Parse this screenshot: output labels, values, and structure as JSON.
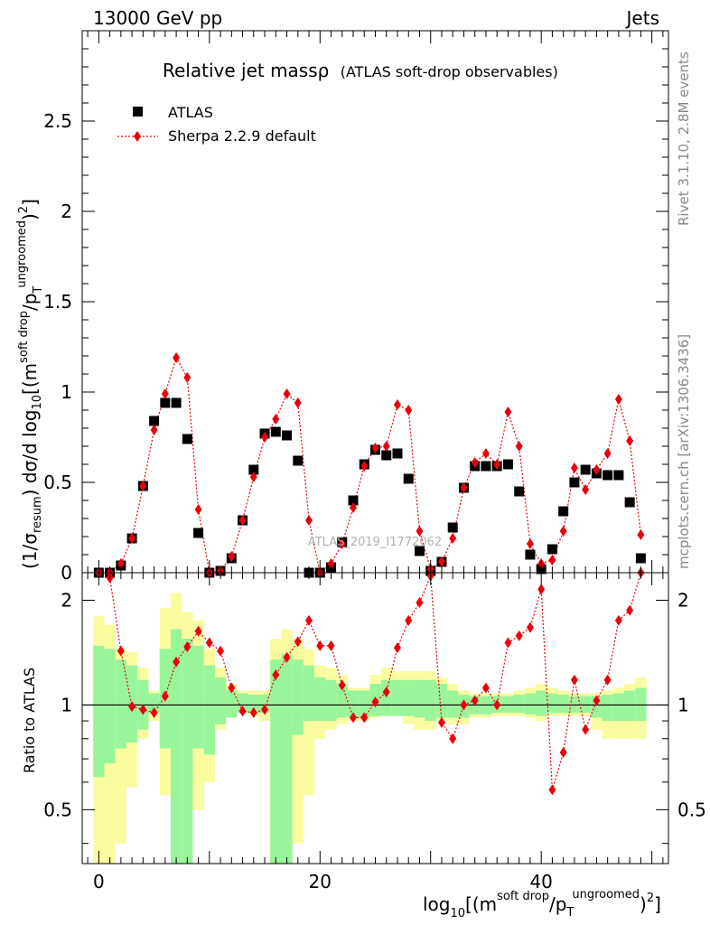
{
  "header": {
    "left": "13000 GeV pp",
    "right": "Jets"
  },
  "title": "Relative jet massρ",
  "title_suffix": "(ATLAS soft-drop observables)",
  "side_labels": {
    "rivet": "Rivet 3.1.10,  2.8M events",
    "mcplots": "mcplots.cern.ch [arXiv:1306.3436]"
  },
  "watermark": "ATLAS_2019_I1772062",
  "legend": {
    "data_label": "ATLAS",
    "mc_label": "Sherpa 2.2.9 default"
  },
  "axes": {
    "ylabel_main": "(1/σresum) dσ/d log10[(m soft drop/pT ungroomed)2]",
    "ylabel_ratio": "Ratio to ATLAS",
    "xlabel": "log10[(m soft drop/pT ungroomed)2]"
  },
  "colors": {
    "data": "#000000",
    "mc": "#e8000b",
    "band_inner": "#99f59a",
    "band_outer": "#fbfba0"
  },
  "chart_data": {
    "type": "scatter",
    "x_range": [
      -1.5,
      51.5
    ],
    "ylim_main": [
      0,
      3.0
    ],
    "ylim_ratio": [
      0.35,
      2.4
    ],
    "x_ticks": [
      0,
      20,
      40
    ],
    "y_ticks_main": [
      0,
      0.5,
      1,
      1.5,
      2,
      2.5
    ],
    "y_ticks_ratio": [
      0.5,
      1,
      2
    ],
    "y_tick_labels_main": [
      "0",
      "0.5",
      "1",
      "1.5",
      "2",
      "2.5"
    ],
    "x_tick_labels": [
      "0",
      "20",
      "40"
    ],
    "y_tick_labels_ratio": [
      "0.5",
      "1",
      "2"
    ],
    "x": [
      0,
      1,
      2,
      3,
      4,
      5,
      6,
      7,
      8,
      9,
      10,
      11,
      12,
      13,
      14,
      15,
      16,
      17,
      18,
      19,
      20,
      21,
      22,
      23,
      24,
      25,
      26,
      27,
      28,
      29,
      30,
      31,
      32,
      33,
      34,
      35,
      36,
      37,
      38,
      39,
      40,
      41,
      42,
      43,
      44,
      45,
      46,
      47,
      48,
      49
    ],
    "series": [
      {
        "name": "ATLAS",
        "marker": "square",
        "values": [
          0.0,
          0.0,
          0.04,
          0.19,
          0.48,
          0.84,
          0.94,
          0.94,
          0.74,
          0.22,
          0.0,
          0.01,
          0.08,
          0.29,
          0.57,
          0.77,
          0.78,
          0.76,
          0.62,
          0.0,
          0.0,
          0.03,
          0.17,
          0.4,
          0.6,
          0.68,
          0.65,
          0.66,
          0.52,
          0.12,
          0.01,
          0.06,
          0.25,
          0.47,
          0.59,
          0.59,
          0.59,
          0.6,
          0.45,
          0.1,
          0.02,
          0.13,
          0.34,
          0.5,
          0.57,
          0.55,
          0.54,
          0.54,
          0.39,
          0.08
        ]
      },
      {
        "name": "Sherpa 2.2.9 default",
        "marker": "diamond",
        "values": [
          0.0,
          0.0,
          0.05,
          0.19,
          0.48,
          0.79,
          0.99,
          1.19,
          1.08,
          0.35,
          0.0,
          0.01,
          0.09,
          0.29,
          0.53,
          0.75,
          0.85,
          0.99,
          0.94,
          0.29,
          0.0,
          0.05,
          0.16,
          0.36,
          0.59,
          0.69,
          0.7,
          0.93,
          0.9,
          0.23,
          0.02,
          0.06,
          0.19,
          0.47,
          0.61,
          0.66,
          0.6,
          0.89,
          0.7,
          0.16,
          0.05,
          0.07,
          0.23,
          0.58,
          0.46,
          0.57,
          0.66,
          0.96,
          0.73,
          0.21
        ]
      }
    ],
    "ratio": {
      "values": [
        null,
        2.32,
        1.43,
        0.99,
        0.97,
        0.95,
        1.06,
        1.33,
        1.47,
        1.63,
        1.51,
        1.43,
        1.12,
        0.96,
        0.95,
        0.97,
        1.22,
        1.37,
        1.52,
        1.75,
        1.48,
        1.48,
        1.14,
        0.92,
        0.92,
        1.02,
        1.09,
        1.46,
        1.75,
        1.97,
        2.35,
        0.89,
        0.8,
        1.0,
        1.03,
        1.12,
        1.0,
        1.51,
        1.58,
        1.67,
        2.15,
        0.57,
        0.73,
        1.18,
        0.85,
        1.03,
        1.18,
        1.75,
        1.87,
        2.4
      ],
      "band_outer_lo": [
        0.35,
        0.35,
        0.4,
        0.58,
        0.8,
        0.9,
        0.55,
        0.35,
        0.35,
        0.5,
        0.6,
        0.85,
        0.92,
        0.95,
        0.93,
        0.9,
        0.35,
        0.35,
        0.4,
        0.55,
        0.8,
        0.85,
        0.88,
        0.9,
        0.9,
        0.92,
        0.93,
        0.93,
        0.88,
        0.85,
        0.85,
        0.9,
        0.88,
        0.88,
        0.92,
        0.92,
        0.93,
        0.93,
        0.93,
        0.92,
        0.9,
        0.93,
        0.93,
        0.93,
        0.93,
        0.85,
        0.8,
        0.8,
        0.8,
        0.8
      ],
      "band_outer_hi": [
        1.8,
        1.7,
        1.45,
        1.42,
        1.28,
        1.1,
        1.9,
        2.1,
        1.85,
        1.75,
        1.45,
        1.28,
        1.15,
        1.1,
        1.1,
        1.1,
        1.55,
        1.65,
        1.55,
        1.45,
        1.3,
        1.28,
        1.22,
        1.12,
        1.12,
        1.22,
        1.28,
        1.25,
        1.25,
        1.25,
        1.25,
        1.2,
        1.15,
        1.1,
        1.08,
        1.08,
        1.08,
        1.08,
        1.1,
        1.12,
        1.15,
        1.12,
        1.1,
        1.08,
        1.08,
        1.08,
        1.1,
        1.12,
        1.15,
        1.2
      ],
      "band_inner_lo": [
        0.62,
        0.68,
        0.75,
        0.78,
        0.85,
        0.95,
        0.75,
        0.35,
        0.35,
        0.75,
        0.72,
        0.88,
        0.92,
        0.95,
        0.95,
        0.95,
        0.35,
        0.35,
        0.82,
        0.9,
        0.9,
        0.9,
        0.92,
        0.92,
        0.92,
        0.93,
        0.93,
        0.93,
        0.93,
        0.92,
        0.9,
        0.92,
        0.92,
        0.92,
        0.94,
        0.94,
        0.95,
        0.95,
        0.95,
        0.94,
        0.93,
        0.95,
        0.95,
        0.95,
        0.95,
        0.92,
        0.9,
        0.9,
        0.9,
        0.9
      ],
      "band_inner_hi": [
        1.48,
        1.45,
        1.35,
        1.3,
        1.18,
        1.08,
        1.45,
        1.65,
        1.55,
        1.48,
        1.3,
        1.2,
        1.1,
        1.08,
        1.07,
        1.07,
        1.35,
        1.4,
        1.35,
        1.3,
        1.2,
        1.18,
        1.15,
        1.1,
        1.1,
        1.15,
        1.18,
        1.18,
        1.18,
        1.18,
        1.18,
        1.15,
        1.1,
        1.07,
        1.06,
        1.06,
        1.06,
        1.06,
        1.07,
        1.08,
        1.1,
        1.08,
        1.07,
        1.06,
        1.06,
        1.06,
        1.07,
        1.08,
        1.1,
        1.12
      ]
    }
  }
}
